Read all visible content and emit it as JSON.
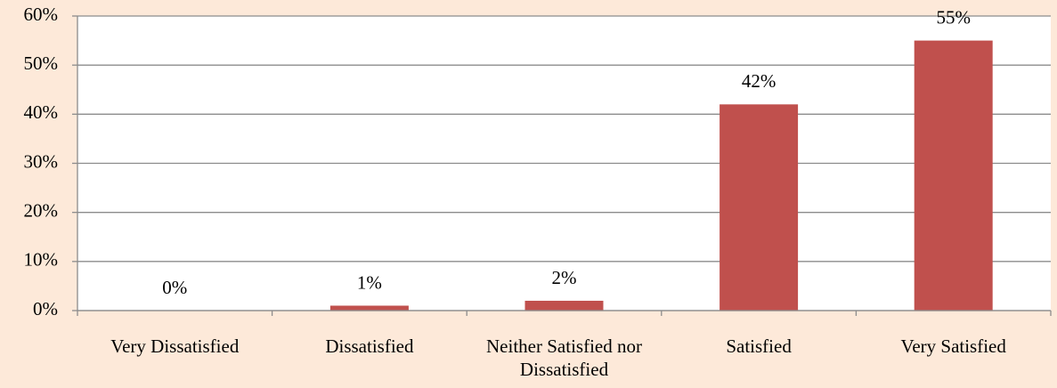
{
  "chart_data": {
    "type": "bar",
    "categories": [
      "Very Dissatisfied",
      "Dissatisfied",
      "Neither Satisfied nor Dissatisfied",
      "Satisfied",
      "Very Satisfied"
    ],
    "values": [
      0,
      1,
      2,
      42,
      55
    ],
    "value_labels": [
      "0%",
      "1%",
      "2%",
      "42%",
      "55%"
    ],
    "color": "#c0504d",
    "ylim": [
      0,
      60
    ],
    "yticks": [
      {
        "value": 0,
        "label": "0%"
      },
      {
        "value": 10,
        "label": "10%"
      },
      {
        "value": 20,
        "label": "20%"
      },
      {
        "value": 30,
        "label": "30%"
      },
      {
        "value": 40,
        "label": "40%"
      },
      {
        "value": 50,
        "label": "50%"
      },
      {
        "value": 60,
        "label": "60%"
      }
    ],
    "grid": true
  }
}
